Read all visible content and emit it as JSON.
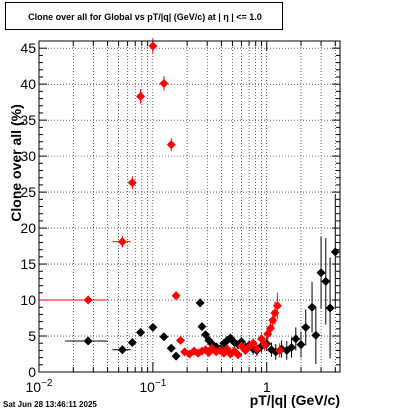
{
  "title": "Clone  over all for Global vs pT/|q| (GeV/c) at |  η  | <= 1.0",
  "timestamp": "Sat Jun 28 13:46:11 2025",
  "chart_data": {
    "type": "scatter",
    "title": "Clone  over all for Global vs pT/|q| (GeV/c) at |  η  | <= 1.0",
    "xlabel": "pT/|q| (GeV/c)",
    "ylabel": "Clone  over all (%)",
    "x_scale": "log",
    "xlim": [
      0.01,
      4.4
    ],
    "ylim": [
      0,
      46
    ],
    "x_ticks": [
      {
        "value": 0.01,
        "base": "10",
        "exp": "−2"
      },
      {
        "value": 0.1,
        "base": "10",
        "exp": "−1"
      },
      {
        "value": 1,
        "base": "1",
        "exp": ""
      }
    ],
    "y_ticks": [
      0,
      5,
      10,
      15,
      20,
      25,
      30,
      35,
      40,
      45
    ],
    "grid": true,
    "series": [
      {
        "color": "#000000",
        "marker": "diamond",
        "points": [
          {
            "x": 0.027,
            "y": 4.3,
            "xerr": [
              0.017,
              0.04
            ],
            "yerr": 0.5
          },
          {
            "x": 0.054,
            "y": 3.1,
            "xerr": [
              0.044,
              0.064
            ],
            "yerr": 0.4
          },
          {
            "x": 0.066,
            "y": 4.1,
            "yerr": 0.4
          },
          {
            "x": 0.078,
            "y": 5.5,
            "yerr": 0.5
          },
          {
            "x": 0.1,
            "y": 6.2,
            "yerr": 0.5
          },
          {
            "x": 0.125,
            "y": 4.9,
            "yerr": 0.4
          },
          {
            "x": 0.145,
            "y": 3.3,
            "yerr": 0.3
          },
          {
            "x": 0.16,
            "y": 2.2,
            "yerr": 0.3
          },
          {
            "x": 0.26,
            "y": 9.6,
            "yerr": 0.6
          },
          {
            "x": 0.27,
            "y": 6.3,
            "yerr": 0.5
          },
          {
            "x": 0.29,
            "y": 5.2,
            "yerr": 0.5
          },
          {
            "x": 0.31,
            "y": 4.4,
            "yerr": 0.5
          },
          {
            "x": 0.33,
            "y": 3.9,
            "yerr": 0.5
          },
          {
            "x": 0.36,
            "y": 3.5,
            "yerr": 0.5
          },
          {
            "x": 0.39,
            "y": 3.2,
            "yerr": 0.5
          },
          {
            "x": 0.42,
            "y": 4.0,
            "yerr": 0.5
          },
          {
            "x": 0.45,
            "y": 4.4,
            "yerr": 0.6
          },
          {
            "x": 0.48,
            "y": 4.7,
            "yerr": 0.6
          },
          {
            "x": 0.52,
            "y": 4.1,
            "yerr": 0.6
          },
          {
            "x": 0.56,
            "y": 3.8,
            "yerr": 0.6
          },
          {
            "x": 0.6,
            "y": 4.2,
            "yerr": 0.7
          },
          {
            "x": 0.65,
            "y": 3.4,
            "yerr": 0.7
          },
          {
            "x": 0.7,
            "y": 3.7,
            "yerr": 0.7
          },
          {
            "x": 0.76,
            "y": 3.2,
            "yerr": 0.8
          },
          {
            "x": 0.82,
            "y": 3.0,
            "yerr": 0.8
          },
          {
            "x": 0.9,
            "y": 3.6,
            "yerr": 0.9
          },
          {
            "x": 1.0,
            "y": 3.9,
            "yerr": 1.0
          },
          {
            "x": 1.1,
            "y": 3.1,
            "yerr": 1.0
          },
          {
            "x": 1.2,
            "y": 2.8,
            "yerr": 1.1
          },
          {
            "x": 1.35,
            "y": 3.2,
            "yerr": 1.2
          },
          {
            "x": 1.5,
            "y": 3.0,
            "yerr": 1.3
          },
          {
            "x": 1.65,
            "y": 3.4,
            "yerr": 1.4
          },
          {
            "x": 1.8,
            "y": 4.6,
            "yerr": 1.6
          },
          {
            "x": 2.0,
            "y": 3.8,
            "yerr": 1.8
          },
          {
            "x": 2.2,
            "y": 6.2,
            "yerr": 2.5
          },
          {
            "x": 2.5,
            "y": 9.0,
            "yerr": 3.5
          },
          {
            "x": 2.7,
            "y": 5.1,
            "yerr": 4.0
          },
          {
            "x": 3.0,
            "y": 13.8,
            "yerr": 5.0
          },
          {
            "x": 3.3,
            "y": 12.6,
            "yerr": 6.0
          },
          {
            "x": 3.6,
            "y": 8.9,
            "yerr": 7.0
          },
          {
            "x": 4.0,
            "y": 16.7,
            "yerr": 8.0
          }
        ]
      },
      {
        "color": "#ff0000",
        "marker": "diamond",
        "points": [
          {
            "x": 0.027,
            "y": 10.0,
            "xerr": [
              0.01,
              0.04
            ],
            "yerr": 0.6
          },
          {
            "x": 0.054,
            "y": 18.1,
            "xerr": [
              0.044,
              0.064
            ],
            "yerr": 0.8
          },
          {
            "x": 0.066,
            "y": 26.3,
            "yerr": 0.9
          },
          {
            "x": 0.078,
            "y": 38.3,
            "yerr": 1.0
          },
          {
            "x": 0.1,
            "y": 45.3,
            "yerr": 1.1
          },
          {
            "x": 0.125,
            "y": 40.1,
            "yerr": 1.0
          },
          {
            "x": 0.145,
            "y": 31.6,
            "yerr": 0.9
          },
          {
            "x": 0.16,
            "y": 10.6,
            "yerr": 0.6
          },
          {
            "x": 0.175,
            "y": 4.4,
            "yerr": 0.4
          },
          {
            "x": 0.19,
            "y": 2.8,
            "yerr": 0.3
          },
          {
            "x": 0.21,
            "y": 2.5,
            "yerr": 0.3
          },
          {
            "x": 0.23,
            "y": 2.9,
            "yerr": 0.3
          },
          {
            "x": 0.25,
            "y": 2.6,
            "yerr": 0.3
          },
          {
            "x": 0.27,
            "y": 2.9,
            "yerr": 0.3
          },
          {
            "x": 0.29,
            "y": 3.1,
            "yerr": 0.3
          },
          {
            "x": 0.31,
            "y": 2.7,
            "yerr": 0.3
          },
          {
            "x": 0.33,
            "y": 3.3,
            "yerr": 0.4
          },
          {
            "x": 0.36,
            "y": 2.8,
            "yerr": 0.4
          },
          {
            "x": 0.39,
            "y": 3.0,
            "yerr": 0.4
          },
          {
            "x": 0.42,
            "y": 2.6,
            "yerr": 0.4
          },
          {
            "x": 0.45,
            "y": 3.2,
            "yerr": 0.4
          },
          {
            "x": 0.48,
            "y": 2.5,
            "yerr": 0.4
          },
          {
            "x": 0.52,
            "y": 2.9,
            "yerr": 0.5
          },
          {
            "x": 0.56,
            "y": 2.4,
            "yerr": 0.5
          },
          {
            "x": 0.6,
            "y": 3.6,
            "yerr": 0.5
          },
          {
            "x": 0.65,
            "y": 3.0,
            "yerr": 0.6
          },
          {
            "x": 0.7,
            "y": 3.5,
            "yerr": 0.6
          },
          {
            "x": 0.76,
            "y": 4.0,
            "yerr": 0.7
          },
          {
            "x": 0.82,
            "y": 3.2,
            "yerr": 0.7
          },
          {
            "x": 0.9,
            "y": 4.6,
            "yerr": 0.8
          },
          {
            "x": 0.96,
            "y": 3.8,
            "yerr": 0.9
          },
          {
            "x": 1.02,
            "y": 5.3,
            "yerr": 1.0
          },
          {
            "x": 1.08,
            "y": 6.1,
            "yerr": 1.2
          },
          {
            "x": 1.13,
            "y": 7.2,
            "yerr": 1.4
          },
          {
            "x": 1.18,
            "y": 8.2,
            "yerr": 1.6
          },
          {
            "x": 1.24,
            "y": 9.2,
            "yerr": 1.8
          },
          {
            "x": 1.3,
            "y": 3.0,
            "yerr": 1.0
          }
        ]
      }
    ]
  }
}
